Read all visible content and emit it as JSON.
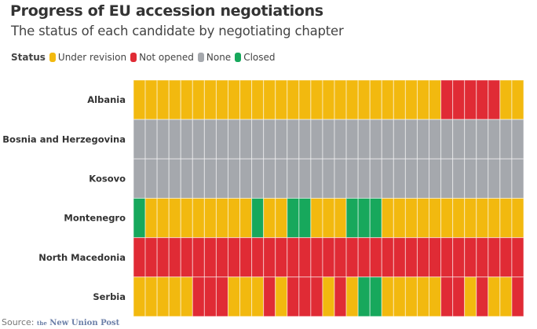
{
  "chart_data": {
    "type": "heatmap",
    "title": "Progress of EU accession negotiations",
    "subtitle": "The status of each candidate by negotiating chapter",
    "legend_title": "Status",
    "legend_placement": "top-left",
    "statuses": [
      {
        "code": "U",
        "label": "Under revision",
        "color": "#f2b90f"
      },
      {
        "code": "N",
        "label": "Not opened",
        "color": "#e02b35"
      },
      {
        "code": "X",
        "label": "None",
        "color": "#a5a8ad"
      },
      {
        "code": "C",
        "label": "Closed",
        "color": "#17a85c"
      }
    ],
    "rows": [
      {
        "label": "Albania",
        "cells": [
          "U",
          "U",
          "U",
          "U",
          "U",
          "U",
          "U",
          "U",
          "U",
          "U",
          "U",
          "U",
          "U",
          "U",
          "U",
          "U",
          "U",
          "U",
          "U",
          "U",
          "U",
          "U",
          "U",
          "U",
          "U",
          "U",
          "N",
          "N",
          "N",
          "N",
          "N",
          "U",
          "U"
        ]
      },
      {
        "label": "Bosnia and Herzegovina",
        "cells": [
          "X",
          "X",
          "X",
          "X",
          "X",
          "X",
          "X",
          "X",
          "X",
          "X",
          "X",
          "X",
          "X",
          "X",
          "X",
          "X",
          "X",
          "X",
          "X",
          "X",
          "X",
          "X",
          "X",
          "X",
          "X",
          "X",
          "X",
          "X",
          "X",
          "X",
          "X",
          "X",
          "X"
        ]
      },
      {
        "label": "Kosovo",
        "cells": [
          "X",
          "X",
          "X",
          "X",
          "X",
          "X",
          "X",
          "X",
          "X",
          "X",
          "X",
          "X",
          "X",
          "X",
          "X",
          "X",
          "X",
          "X",
          "X",
          "X",
          "X",
          "X",
          "X",
          "X",
          "X",
          "X",
          "X",
          "X",
          "X",
          "X",
          "X",
          "X",
          "X"
        ]
      },
      {
        "label": "Montenegro",
        "cells": [
          "C",
          "U",
          "U",
          "U",
          "U",
          "U",
          "U",
          "U",
          "U",
          "U",
          "C",
          "U",
          "U",
          "C",
          "C",
          "U",
          "U",
          "U",
          "C",
          "C",
          "C",
          "U",
          "U",
          "U",
          "U",
          "U",
          "U",
          "U",
          "U",
          "U",
          "U",
          "U",
          "U"
        ]
      },
      {
        "label": "North Macedonia",
        "cells": [
          "N",
          "N",
          "N",
          "N",
          "N",
          "N",
          "N",
          "N",
          "N",
          "N",
          "N",
          "N",
          "N",
          "N",
          "N",
          "N",
          "N",
          "N",
          "N",
          "N",
          "N",
          "N",
          "N",
          "N",
          "N",
          "N",
          "N",
          "N",
          "N",
          "N",
          "N",
          "N",
          "N"
        ]
      },
      {
        "label": "Serbia",
        "cells": [
          "U",
          "U",
          "U",
          "U",
          "U",
          "N",
          "N",
          "N",
          "U",
          "U",
          "U",
          "N",
          "U",
          "N",
          "N",
          "N",
          "U",
          "N",
          "U",
          "C",
          "C",
          "U",
          "U",
          "U",
          "U",
          "U",
          "N",
          "N",
          "U",
          "N",
          "U",
          "U",
          "N"
        ]
      }
    ]
  },
  "source": {
    "label": "Source:",
    "publisher_the": "the",
    "publisher": "New Union Post"
  }
}
